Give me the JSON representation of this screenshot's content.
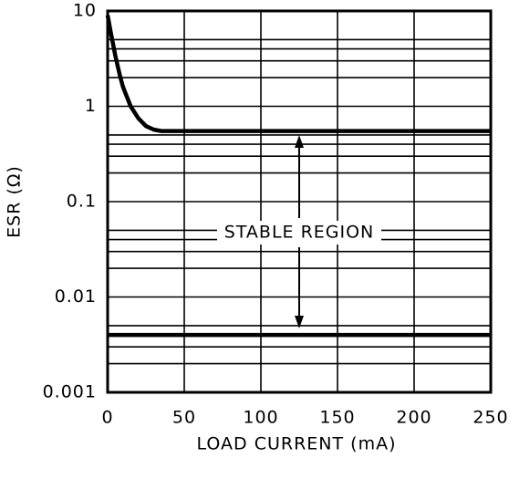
{
  "chart_data": {
    "type": "line",
    "x_label": "LOAD CURRENT (mA)",
    "y_label": "ESR (Ω)",
    "annotation": "STABLE REGION",
    "log_y": true,
    "grid": true,
    "xlim": [
      0,
      250
    ],
    "xticks": [
      0,
      50,
      100,
      150,
      200,
      250
    ],
    "ylim": [
      0.001,
      10
    ],
    "yticks": [
      0.001,
      0.01,
      0.1,
      1,
      10
    ],
    "y_minor_grid": [
      0.002,
      0.003,
      0.004,
      0.005,
      0.02,
      0.03,
      0.04,
      0.05,
      0.2,
      0.3,
      0.4,
      0.5,
      2,
      3,
      4,
      5
    ],
    "series": [
      {
        "color": "#000000",
        "x": [
          0,
          2,
          5,
          8,
          10,
          15,
          20,
          25,
          30,
          35,
          40,
          60,
          250
        ],
        "values": [
          9,
          6,
          3.4,
          2.1,
          1.6,
          1.0,
          0.75,
          0.62,
          0.57,
          0.55,
          0.55,
          0.55,
          0.55
        ]
      },
      {
        "color": "#000000",
        "x": [
          0,
          250
        ],
        "values": [
          0.004,
          0.004
        ]
      }
    ]
  }
}
